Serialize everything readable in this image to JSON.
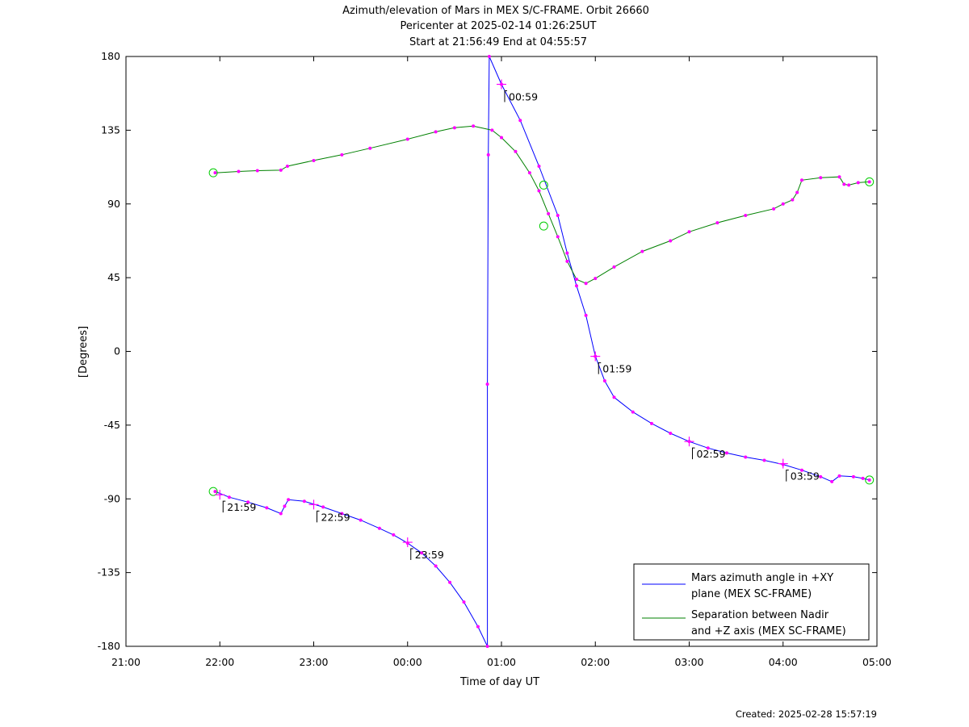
{
  "title_lines": [
    "Azimuth/elevation of Mars in MEX S/C-FRAME.  Orbit 26660",
    "Pericenter at 2025-02-14 01:26:25UT",
    "Start at 21:56:49 End at 04:55:57"
  ],
  "footer": "Created: 2025-02-28 15:57:19",
  "colors": {
    "azimuth": "#0000ff",
    "separation": "#008000",
    "marker": "#ff00ff",
    "circle": "#00cc00"
  },
  "chart_data": {
    "type": "line",
    "xlabel": "Time of day UT",
    "ylabel": "[Degrees]",
    "x_unit": "hours since 21:00",
    "xlim": [
      0,
      8
    ],
    "ylim": [
      -180,
      180
    ],
    "x_ticks": [
      {
        "x": 0,
        "label": "21:00"
      },
      {
        "x": 1,
        "label": "22:00"
      },
      {
        "x": 2,
        "label": "23:00"
      },
      {
        "x": 3,
        "label": "00:00"
      },
      {
        "x": 4,
        "label": "01:00"
      },
      {
        "x": 5,
        "label": "02:00"
      },
      {
        "x": 6,
        "label": "03:00"
      },
      {
        "x": 7,
        "label": "04:00"
      },
      {
        "x": 8,
        "label": "05:00"
      }
    ],
    "y_ticks": [
      180,
      135,
      90,
      45,
      0,
      -45,
      -90,
      -135,
      -180
    ],
    "grid": false,
    "legend_position": "bottom-right",
    "series": [
      {
        "name": "Mars azimuth angle in +XY plane (MEX SC-FRAME)",
        "legend_lines": [
          "Mars azimuth angle in +XY",
          "plane (MEX SC-FRAME)"
        ],
        "color_key": "azimuth",
        "points": [
          [
            0.95,
            -85.5
          ],
          [
            1.1,
            -89
          ],
          [
            1.3,
            -92
          ],
          [
            1.5,
            -95.5
          ],
          [
            1.65,
            -99
          ],
          [
            1.69,
            -94.5
          ],
          [
            1.73,
            -90.5
          ],
          [
            1.9,
            -91.5
          ],
          [
            2.1,
            -95
          ],
          [
            2.3,
            -99
          ],
          [
            2.5,
            -103
          ],
          [
            2.7,
            -108
          ],
          [
            2.85,
            -112
          ],
          [
            3.0,
            -117
          ],
          [
            3.15,
            -123
          ],
          [
            3.3,
            -131
          ],
          [
            3.45,
            -141
          ],
          [
            3.6,
            -153
          ],
          [
            3.75,
            -168
          ],
          [
            3.85,
            -180
          ],
          [
            3.85,
            -20
          ],
          [
            3.86,
            120
          ],
          [
            3.87,
            180
          ],
          [
            4.0,
            163
          ],
          [
            4.2,
            141
          ],
          [
            4.4,
            113
          ],
          [
            4.6,
            83
          ],
          [
            4.7,
            60
          ],
          [
            4.8,
            40
          ],
          [
            4.9,
            22
          ],
          [
            5.0,
            -3
          ],
          [
            5.1,
            -18
          ],
          [
            5.2,
            -28
          ],
          [
            5.4,
            -37
          ],
          [
            5.6,
            -44
          ],
          [
            5.8,
            -50
          ],
          [
            6.0,
            -55
          ],
          [
            6.2,
            -59
          ],
          [
            6.4,
            -62
          ],
          [
            6.6,
            -64.5
          ],
          [
            6.8,
            -66.5
          ],
          [
            7.0,
            -69
          ],
          [
            7.2,
            -72.5
          ],
          [
            7.4,
            -76.5
          ],
          [
            7.52,
            -79.5
          ],
          [
            7.6,
            -76
          ],
          [
            7.75,
            -76.5
          ],
          [
            7.85,
            -77.5
          ],
          [
            7.92,
            -78.5
          ]
        ]
      },
      {
        "name": "Separation between Nadir and +Z axis (MEX SC-FRAME)",
        "legend_lines": [
          "Separation between Nadir",
          "and +Z axis (MEX SC-FRAME)"
        ],
        "color_key": "separation",
        "points": [
          [
            0.95,
            109
          ],
          [
            1.2,
            109.8
          ],
          [
            1.4,
            110.3
          ],
          [
            1.65,
            110.6
          ],
          [
            1.72,
            113
          ],
          [
            2.0,
            116.5
          ],
          [
            2.3,
            120
          ],
          [
            2.6,
            124
          ],
          [
            3.0,
            129.5
          ],
          [
            3.3,
            134
          ],
          [
            3.5,
            136.5
          ],
          [
            3.7,
            137.5
          ],
          [
            3.9,
            135
          ],
          [
            4.0,
            130.5
          ],
          [
            4.15,
            122
          ],
          [
            4.3,
            109
          ],
          [
            4.4,
            98
          ],
          [
            4.5,
            84
          ],
          [
            4.6,
            70
          ],
          [
            4.7,
            55
          ],
          [
            4.8,
            44
          ],
          [
            4.9,
            41.5
          ],
          [
            5.0,
            44.5
          ],
          [
            5.2,
            51.5
          ],
          [
            5.5,
            61
          ],
          [
            5.8,
            67.5
          ],
          [
            6.0,
            73
          ],
          [
            6.3,
            78.5
          ],
          [
            6.6,
            83
          ],
          [
            6.9,
            87
          ],
          [
            7.0,
            90
          ],
          [
            7.1,
            92.5
          ],
          [
            7.15,
            97
          ],
          [
            7.2,
            104.5
          ],
          [
            7.4,
            106
          ],
          [
            7.6,
            106.5
          ],
          [
            7.65,
            102
          ],
          [
            7.7,
            101.5
          ],
          [
            7.8,
            103
          ],
          [
            7.92,
            103.5
          ]
        ]
      }
    ],
    "hourly_marker_labels": [
      {
        "x": 1.0,
        "y": -87.5,
        "label": "21:59"
      },
      {
        "x": 2.0,
        "y": -93.5,
        "label": "22:59"
      },
      {
        "x": 3.0,
        "y": -116.5,
        "label": "23:59"
      },
      {
        "x": 4.0,
        "y": 163,
        "label": "00:59"
      },
      {
        "x": 5.0,
        "y": -3,
        "label": "01:59"
      },
      {
        "x": 6.0,
        "y": -55,
        "label": "02:59"
      },
      {
        "x": 7.0,
        "y": -68.5,
        "label": "03:59"
      }
    ],
    "circle_markers": [
      {
        "x": 0.93,
        "y": -85.5
      },
      {
        "x": 7.92,
        "y": -78.5
      },
      {
        "x": 0.93,
        "y": 109
      },
      {
        "x": 7.92,
        "y": 103.5
      },
      {
        "x": 4.45,
        "y": 101.5
      },
      {
        "x": 4.45,
        "y": 76.5
      }
    ]
  }
}
